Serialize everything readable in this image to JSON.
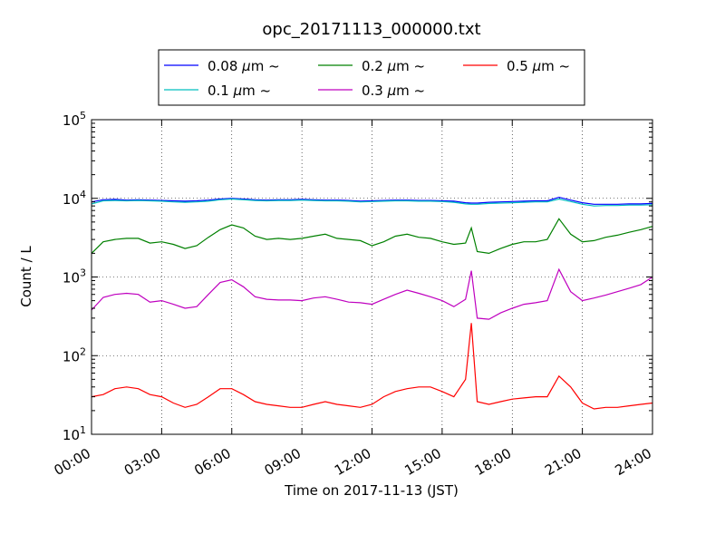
{
  "chart_data": {
    "type": "line",
    "title": "opc_20171113_000000.txt",
    "xlabel": "Time on 2017-11-13 (JST)",
    "ylabel": "Count / L",
    "y_scale": "log",
    "ylim": [
      10,
      100000
    ],
    "xlim": [
      "00:00",
      "24:00"
    ],
    "x_ticks": [
      "00:00",
      "03:00",
      "06:00",
      "09:00",
      "12:00",
      "15:00",
      "18:00",
      "21:00",
      "24:00"
    ],
    "y_ticks": [
      {
        "value": 10,
        "base": "10",
        "exp": "1"
      },
      {
        "value": 100,
        "base": "10",
        "exp": "2"
      },
      {
        "value": 1000,
        "base": "10",
        "exp": "3"
      },
      {
        "value": 10000,
        "base": "10",
        "exp": "4"
      },
      {
        "value": 100000,
        "base": "10",
        "exp": "5"
      }
    ],
    "grid": true,
    "legend_position": "top-center",
    "x": [
      "00:00",
      "00:30",
      "01:00",
      "01:30",
      "02:00",
      "02:30",
      "03:00",
      "03:30",
      "04:00",
      "04:30",
      "05:00",
      "05:30",
      "06:00",
      "06:30",
      "07:00",
      "07:30",
      "08:00",
      "08:30",
      "09:00",
      "09:30",
      "10:00",
      "10:30",
      "11:00",
      "11:30",
      "12:00",
      "12:30",
      "13:00",
      "13:30",
      "14:00",
      "14:30",
      "15:00",
      "15:30",
      "16:00",
      "16:15",
      "16:30",
      "17:00",
      "17:30",
      "18:00",
      "18:30",
      "19:00",
      "19:30",
      "20:00",
      "20:30",
      "21:00",
      "21:30",
      "22:00",
      "22:30",
      "23:00",
      "23:30",
      "24:00"
    ],
    "series": [
      {
        "name": "0.08",
        "unit": "μm",
        "suffix": "~",
        "color": "#0000ff",
        "values": [
          9000,
          9600,
          9700,
          9500,
          9600,
          9500,
          9400,
          9300,
          9200,
          9300,
          9500,
          9800,
          10000,
          9800,
          9600,
          9500,
          9600,
          9600,
          9700,
          9600,
          9500,
          9500,
          9400,
          9200,
          9300,
          9400,
          9500,
          9500,
          9400,
          9400,
          9300,
          9200,
          8800,
          8700,
          8700,
          8900,
          9000,
          9100,
          9200,
          9300,
          9300,
          10300,
          9500,
          8800,
          8400,
          8400,
          8400,
          8500,
          8500,
          8600
        ]
      },
      {
        "name": "0.1",
        "unit": "μm",
        "suffix": "~",
        "color": "#00bfbf",
        "values": [
          8500,
          9300,
          9400,
          9300,
          9400,
          9300,
          9200,
          9000,
          8900,
          9000,
          9200,
          9600,
          9800,
          9600,
          9400,
          9300,
          9400,
          9400,
          9500,
          9400,
          9300,
          9300,
          9200,
          9000,
          9100,
          9200,
          9300,
          9300,
          9200,
          9200,
          9100,
          8900,
          8500,
          8400,
          8400,
          8600,
          8700,
          8800,
          8900,
          9000,
          9000,
          9800,
          9100,
          8400,
          8000,
          8100,
          8100,
          8200,
          8200,
          8300
        ]
      },
      {
        "name": "0.2",
        "unit": "μm",
        "suffix": "~",
        "color": "#008000",
        "values": [
          2000,
          2800,
          3000,
          3100,
          3100,
          2700,
          2800,
          2600,
          2300,
          2500,
          3200,
          4000,
          4600,
          4200,
          3300,
          3000,
          3100,
          3000,
          3100,
          3300,
          3500,
          3100,
          3000,
          2900,
          2500,
          2800,
          3300,
          3500,
          3200,
          3100,
          2800,
          2600,
          2700,
          4200,
          2100,
          2000,
          2300,
          2600,
          2800,
          2800,
          3000,
          5500,
          3500,
          2800,
          2900,
          3200,
          3400,
          3700,
          4000,
          4400
        ]
      },
      {
        "name": "0.3",
        "unit": "μm",
        "suffix": "~",
        "color": "#bf00bf",
        "values": [
          380,
          550,
          600,
          620,
          600,
          480,
          500,
          450,
          400,
          420,
          600,
          850,
          920,
          750,
          560,
          520,
          510,
          510,
          500,
          540,
          560,
          520,
          480,
          470,
          450,
          520,
          600,
          680,
          620,
          560,
          500,
          420,
          520,
          1200,
          300,
          290,
          350,
          400,
          450,
          470,
          500,
          1250,
          650,
          500,
          540,
          590,
          650,
          720,
          800,
          1000
        ]
      },
      {
        "name": "0.5",
        "unit": "μm",
        "suffix": "~",
        "color": "#ff0000",
        "values": [
          30,
          32,
          38,
          40,
          38,
          32,
          30,
          25,
          22,
          24,
          30,
          38,
          38,
          32,
          26,
          24,
          23,
          22,
          22,
          24,
          26,
          24,
          23,
          22,
          24,
          30,
          35,
          38,
          40,
          40,
          35,
          30,
          50,
          260,
          26,
          24,
          26,
          28,
          29,
          30,
          30,
          55,
          40,
          25,
          21,
          22,
          22,
          23,
          24,
          25
        ]
      }
    ]
  }
}
